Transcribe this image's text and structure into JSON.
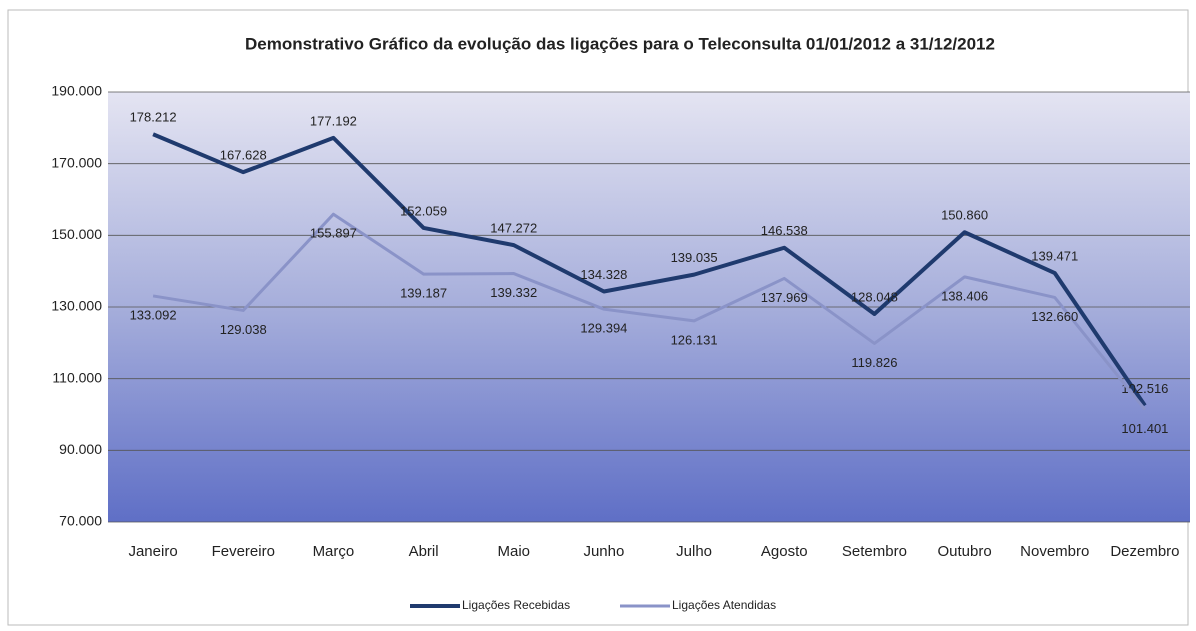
{
  "chart_data": {
    "type": "line",
    "title": "Demonstrativo Gráfico da evolução das ligações para o Teleconsulta 01/01/2012 a 31/12/2012",
    "categories": [
      "Janeiro",
      "Fevereiro",
      "Março",
      "Abril",
      "Maio",
      "Junho",
      "Julho",
      "Agosto",
      "Setembro",
      "Outubro",
      "Novembro",
      "Dezembro"
    ],
    "series": [
      {
        "name": "Ligações Recebidas",
        "color": "#1f3a6e",
        "values": [
          178212,
          167628,
          177192,
          152059,
          147272,
          134328,
          139035,
          146538,
          128048,
          150860,
          139471,
          102516
        ],
        "value_labels": [
          "178.212",
          "167.628",
          "177.192",
          "152.059",
          "147.272",
          "134.328",
          "139.035",
          "146.538",
          "128.048",
          "150.860",
          "139.471",
          "102.516"
        ]
      },
      {
        "name": "Ligações Atendidas",
        "color": "#8a93c8",
        "values": [
          133092,
          129038,
          155897,
          139187,
          139332,
          129394,
          126131,
          137969,
          119826,
          138406,
          132660,
          101401
        ],
        "value_labels": [
          "133.092",
          "129.038",
          "155.897",
          "139.187",
          "139.332",
          "129.394",
          "126.131",
          "137.969",
          "119.826",
          "138.406",
          "132.660",
          "101.401"
        ]
      }
    ],
    "ylim": [
      70000,
      190000
    ],
    "yticks": [
      {
        "value": 70000,
        "label": "70.000"
      },
      {
        "value": 90000,
        "label": "90.000"
      },
      {
        "value": 110000,
        "label": "110.000"
      },
      {
        "value": 130000,
        "label": "130.000"
      },
      {
        "value": 150000,
        "label": "150.000"
      },
      {
        "value": 170000,
        "label": "170.000"
      },
      {
        "value": 190000,
        "label": "190.000"
      }
    ],
    "grid": true,
    "legend": "bottom"
  }
}
